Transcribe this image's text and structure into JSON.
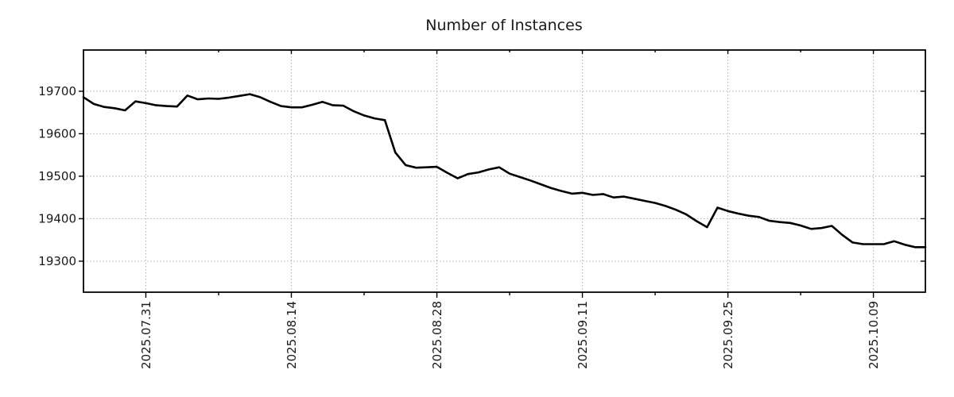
{
  "chart_data": {
    "type": "line",
    "title": "Number of Instances",
    "xlabel": "",
    "ylabel": "",
    "grid": true,
    "legend": "none",
    "line_color": "#000000",
    "grid_color": "#b0b0b0",
    "axis_color": "#000000",
    "text_color": "#1a1a1a",
    "background_color": "#ffffff",
    "ylim": [
      19227,
      19797
    ],
    "yticks": [
      19300,
      19400,
      19500,
      19600,
      19700
    ],
    "xticks": [
      {
        "label": "2025.07.31",
        "index": 6
      },
      {
        "label": "2025.08.14",
        "index": 20
      },
      {
        "label": "2025.08.28",
        "index": 34
      },
      {
        "label": "2025.09.11",
        "index": 48
      },
      {
        "label": "2025.09.25",
        "index": 62
      },
      {
        "label": "2025.10.09",
        "index": 76
      }
    ],
    "minor_xtick_indices": [
      13,
      27,
      41,
      55,
      69
    ],
    "series": [
      {
        "name": "Number of Instances",
        "dates": [
          "2025.07.25",
          "2025.07.26",
          "2025.07.27",
          "2025.07.28",
          "2025.07.29",
          "2025.07.30",
          "2025.07.31",
          "2025.08.01",
          "2025.08.02",
          "2025.08.03",
          "2025.08.04",
          "2025.08.05",
          "2025.08.06",
          "2025.08.07",
          "2025.08.08",
          "2025.08.09",
          "2025.08.10",
          "2025.08.11",
          "2025.08.12",
          "2025.08.13",
          "2025.08.14",
          "2025.08.15",
          "2025.08.16",
          "2025.08.17",
          "2025.08.18",
          "2025.08.19",
          "2025.08.20",
          "2025.08.21",
          "2025.08.22",
          "2025.08.23",
          "2025.08.24",
          "2025.08.25",
          "2025.08.26",
          "2025.08.27",
          "2025.08.28",
          "2025.08.29",
          "2025.08.30",
          "2025.08.31",
          "2025.09.01",
          "2025.09.02",
          "2025.09.03",
          "2025.09.04",
          "2025.09.05",
          "2025.09.06",
          "2025.09.07",
          "2025.09.08",
          "2025.09.09",
          "2025.09.10",
          "2025.09.11",
          "2025.09.12",
          "2025.09.13",
          "2025.09.14",
          "2025.09.15",
          "2025.09.16",
          "2025.09.17",
          "2025.09.18",
          "2025.09.19",
          "2025.09.20",
          "2025.09.21",
          "2025.09.22",
          "2025.09.23",
          "2025.09.24",
          "2025.09.25",
          "2025.09.26",
          "2025.09.27",
          "2025.09.28",
          "2025.09.29",
          "2025.09.30",
          "2025.10.01",
          "2025.10.02",
          "2025.10.03",
          "2025.10.04",
          "2025.10.05",
          "2025.10.06",
          "2025.10.07",
          "2025.10.08",
          "2025.10.09",
          "2025.10.10",
          "2025.10.11",
          "2025.10.12",
          "2025.10.13",
          "2025.10.14"
        ],
        "values": [
          19686,
          19670,
          19663,
          19660,
          19655,
          19676,
          19672,
          19667,
          19665,
          19664,
          19690,
          19681,
          19683,
          19682,
          19685,
          19689,
          19693,
          19686,
          19675,
          19665,
          19662,
          19662,
          19668,
          19675,
          19667,
          19666,
          19653,
          19643,
          19636,
          19632,
          19556,
          19526,
          19520,
          19521,
          19522,
          19508,
          19495,
          19505,
          19509,
          19516,
          19521,
          19506,
          19498,
          19490,
          19481,
          19472,
          19465,
          19459,
          19461,
          19456,
          19458,
          19450,
          19452,
          19447,
          19442,
          19437,
          19430,
          19421,
          19410,
          19394,
          19380,
          19426,
          19418,
          19412,
          19407,
          19404,
          19395,
          19392,
          19390,
          19384,
          19376,
          19378,
          19383,
          19362,
          19344,
          19340,
          19340,
          19340,
          19347,
          19339,
          19333,
          19333
        ]
      }
    ]
  }
}
